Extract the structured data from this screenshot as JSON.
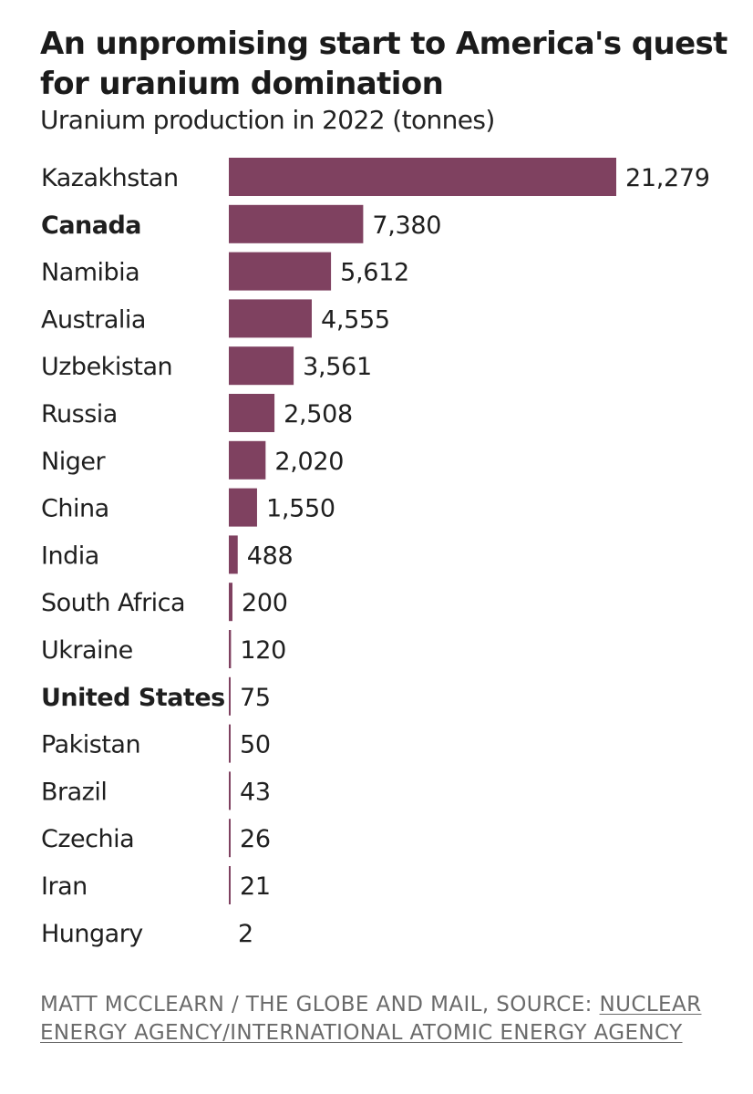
{
  "header": {
    "title": "An unpromising start to America's quest for uranium domination",
    "subtitle": "Uranium production in 2022 (tonnes)"
  },
  "footer": {
    "credit": "MATT MCCLEARN / THE GLOBE AND MAIL, SOURCE: ",
    "source": "NUCLEAR ENERGY AGENCY/INTERNATIONAL ATOMIC ENERGY AGENCY"
  },
  "colors": {
    "bar": "#7f4160",
    "text": "#1f1f1f",
    "footer": "#6a6a6a"
  },
  "chart_data": {
    "type": "bar",
    "orientation": "horizontal",
    "title": "An unpromising start to America's quest for uranium domination",
    "subtitle": "Uranium production in 2022 (tonnes)",
    "categories": [
      "Kazakhstan",
      "Canada",
      "Namibia",
      "Australia",
      "Uzbekistan",
      "Russia",
      "Niger",
      "China",
      "India",
      "South Africa",
      "Ukraine",
      "United States",
      "Pakistan",
      "Brazil",
      "Czechia",
      "Iran",
      "Hungary"
    ],
    "values": [
      21279,
      7380,
      5612,
      4555,
      3561,
      2508,
      2020,
      1550,
      488,
      200,
      120,
      75,
      50,
      43,
      26,
      21,
      2
    ],
    "value_labels": [
      "21,279",
      "7,380",
      "5,612",
      "4,555",
      "3,561",
      "2,508",
      "2,020",
      "1,550",
      "488",
      "200",
      "120",
      "75",
      "50",
      "43",
      "26",
      "21",
      "2"
    ],
    "highlighted": [
      "Canada",
      "United States"
    ],
    "xlim": [
      0,
      21279
    ],
    "grid": false,
    "legend": "none"
  }
}
